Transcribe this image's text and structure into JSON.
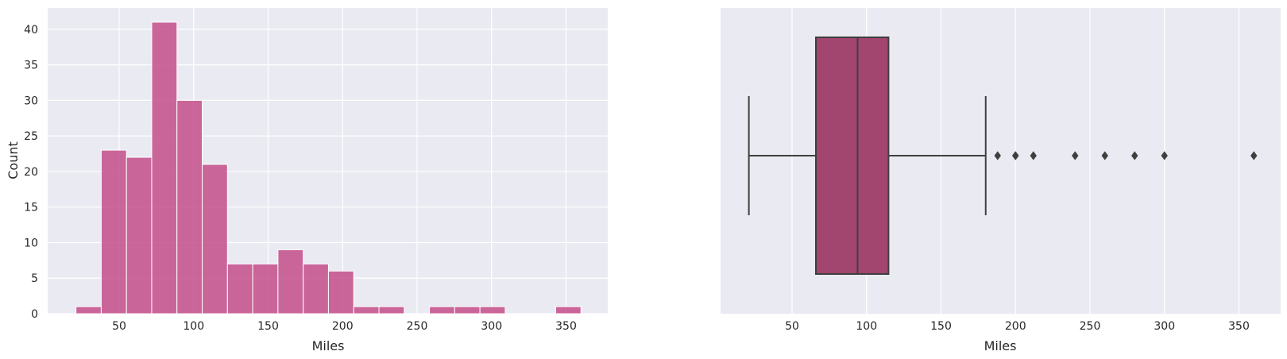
{
  "chart_data": [
    {
      "type": "histogram",
      "xlabel": "Miles",
      "ylabel": "Count",
      "xlim": [
        2,
        378
      ],
      "ylim": [
        0,
        43
      ],
      "xticks": [
        50,
        100,
        150,
        200,
        250,
        300,
        350
      ],
      "yticks": [
        0,
        5,
        10,
        15,
        20,
        25,
        30,
        35,
        40
      ],
      "bin_edges": [
        21,
        37.95,
        54.9,
        71.85,
        88.8,
        105.75,
        122.7,
        139.65,
        156.6,
        173.55,
        190.5,
        207.45,
        224.4,
        241.35,
        258.3,
        275.25,
        292.2,
        309.15,
        326.1,
        343.05,
        360
      ],
      "values": [
        1,
        23,
        22,
        41,
        30,
        21,
        7,
        7,
        9,
        7,
        6,
        1,
        1,
        0,
        1,
        1,
        1,
        0,
        0,
        1
      ],
      "color": "#c44e8a",
      "grid": true,
      "background": "#eaeaf2"
    },
    {
      "type": "boxplot",
      "orient": "horizontal",
      "xlabel": "Miles",
      "xlim": [
        2,
        378
      ],
      "xticks": [
        50,
        100,
        150,
        200,
        250,
        300,
        350
      ],
      "whisker_low": 21,
      "q1": 66,
      "median": 94,
      "q3": 114.75,
      "whisker_high": 180,
      "outliers": [
        188,
        200,
        200,
        212,
        240,
        260,
        280,
        300,
        360
      ],
      "color": "#a2456f",
      "grid": true,
      "background": "#eaeaf2"
    }
  ]
}
